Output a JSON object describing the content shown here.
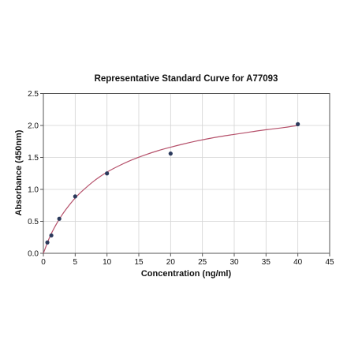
{
  "chart_data": {
    "type": "scatter",
    "title": "Representative Standard Curve for A77093",
    "xlabel": "Concentration (ng/ml)",
    "ylabel": "Absorbance (450nm)",
    "xlim": [
      0,
      45
    ],
    "ylim": [
      0,
      2.5
    ],
    "xticks": [
      "0",
      "5",
      "10",
      "15",
      "20",
      "25",
      "30",
      "35",
      "40",
      "45"
    ],
    "yticks": [
      "0.0",
      "0.5",
      "1.0",
      "1.5",
      "2.0",
      "2.5"
    ],
    "grid": true,
    "series": [
      {
        "kind": "points",
        "x": [
          0.625,
          1.25,
          2.5,
          5,
          10,
          20,
          40
        ],
        "y": [
          0.17,
          0.28,
          0.54,
          0.89,
          1.25,
          1.56,
          2.02
        ]
      },
      {
        "kind": "fit-curve",
        "x": [
          0,
          1,
          2,
          3,
          4,
          5,
          6,
          8,
          10,
          12,
          14,
          16,
          18,
          20,
          22,
          24,
          26,
          28,
          30,
          32,
          34,
          36,
          38,
          40
        ],
        "y": [
          0.0,
          0.255,
          0.45,
          0.61,
          0.745,
          0.865,
          0.965,
          1.135,
          1.27,
          1.375,
          1.465,
          1.54,
          1.605,
          1.66,
          1.71,
          1.755,
          1.795,
          1.83,
          1.86,
          1.89,
          1.92,
          1.945,
          1.97,
          2.0
        ]
      }
    ],
    "colors": {
      "points": "#2b3a5c",
      "curve": "#b5506a",
      "grid": "#d3d3d3",
      "axis": "#555555"
    }
  }
}
